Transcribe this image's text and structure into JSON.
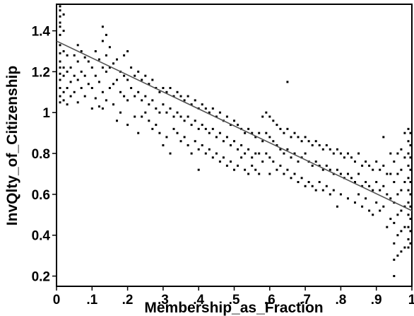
{
  "chart_data": {
    "type": "scatter",
    "xlabel": "Membership_as_Fraction",
    "ylabel": "InvQlty_of_Citizenship",
    "xlim": [
      0,
      1
    ],
    "ylim": [
      0.15,
      1.53
    ],
    "x_ticks": [
      0,
      0.1,
      0.2,
      0.3,
      0.4,
      0.5,
      0.6,
      0.7,
      0.8,
      0.9,
      1
    ],
    "x_tick_labels": [
      "0",
      ".1",
      ".2",
      ".3",
      ".4",
      ".5",
      ".6",
      ".7",
      ".8",
      ".9",
      "1"
    ],
    "y_ticks": [
      0.2,
      0.4,
      0.6,
      0.8,
      1.0,
      1.2,
      1.4
    ],
    "y_tick_labels": [
      "0.2",
      "0.4",
      "0.6",
      "0.8",
      "1",
      "1.2",
      "1.4"
    ],
    "grid": false,
    "legend": "none",
    "point_color": "#000000",
    "line_color": "#555555",
    "fit_line": {
      "x": [
        0,
        1
      ],
      "y": [
        1.35,
        0.52
      ]
    },
    "points": [
      [
        0.01,
        1.52
      ],
      [
        0.01,
        1.5
      ],
      [
        0.01,
        1.47
      ],
      [
        0.01,
        1.44
      ],
      [
        0.01,
        1.42
      ],
      [
        0.01,
        1.38
      ],
      [
        0.01,
        1.33
      ],
      [
        0.01,
        1.29
      ],
      [
        0.01,
        1.25
      ],
      [
        0.01,
        1.22
      ],
      [
        0.01,
        1.19
      ],
      [
        0.01,
        1.16
      ],
      [
        0.01,
        1.12
      ],
      [
        0.01,
        1.08
      ],
      [
        0.01,
        1.05
      ],
      [
        0.02,
        1.48
      ],
      [
        0.02,
        1.4
      ],
      [
        0.02,
        1.3
      ],
      [
        0.02,
        1.22
      ],
      [
        0.02,
        1.18
      ],
      [
        0.02,
        1.1
      ],
      [
        0.02,
        1.06
      ],
      [
        0.03,
        1.28
      ],
      [
        0.03,
        1.2
      ],
      [
        0.03,
        1.12
      ],
      [
        0.03,
        1.04
      ],
      [
        0.04,
        1.22
      ],
      [
        0.04,
        1.15
      ],
      [
        0.04,
        1.08
      ],
      [
        0.05,
        1.28
      ],
      [
        0.05,
        1.18
      ],
      [
        0.05,
        1.1
      ],
      [
        0.06,
        1.33
      ],
      [
        0.06,
        1.25
      ],
      [
        0.06,
        1.16
      ],
      [
        0.06,
        1.05
      ],
      [
        0.07,
        1.3
      ],
      [
        0.07,
        1.2
      ],
      [
        0.07,
        1.12
      ],
      [
        0.08,
        1.27
      ],
      [
        0.08,
        1.18
      ],
      [
        0.08,
        1.08
      ],
      [
        0.09,
        1.25
      ],
      [
        0.09,
        1.14
      ],
      [
        0.1,
        1.22
      ],
      [
        0.1,
        1.12
      ],
      [
        0.1,
        1.02
      ],
      [
        0.11,
        1.3
      ],
      [
        0.11,
        1.18
      ],
      [
        0.11,
        1.07
      ],
      [
        0.12,
        1.26
      ],
      [
        0.12,
        1.15
      ],
      [
        0.12,
        1.03
      ],
      [
        0.13,
        1.42
      ],
      [
        0.13,
        1.35
      ],
      [
        0.13,
        1.22
      ],
      [
        0.13,
        1.1
      ],
      [
        0.13,
        1.02
      ],
      [
        0.14,
        1.38
      ],
      [
        0.14,
        1.28
      ],
      [
        0.14,
        1.2
      ],
      [
        0.14,
        1.06
      ],
      [
        0.15,
        1.32
      ],
      [
        0.15,
        1.22
      ],
      [
        0.15,
        1.12
      ],
      [
        0.16,
        1.24
      ],
      [
        0.16,
        1.14
      ],
      [
        0.16,
        1.04
      ],
      [
        0.17,
        1.26
      ],
      [
        0.17,
        1.16
      ],
      [
        0.17,
        0.96
      ],
      [
        0.18,
        1.2
      ],
      [
        0.18,
        1.1
      ],
      [
        0.18,
        1.0
      ],
      [
        0.19,
        1.28
      ],
      [
        0.19,
        1.18
      ],
      [
        0.19,
        1.08
      ],
      [
        0.2,
        1.3
      ],
      [
        0.2,
        1.16
      ],
      [
        0.2,
        1.06
      ],
      [
        0.2,
        0.94
      ],
      [
        0.21,
        1.22
      ],
      [
        0.21,
        1.12
      ],
      [
        0.22,
        1.18
      ],
      [
        0.22,
        1.08
      ],
      [
        0.22,
        0.98
      ],
      [
        0.23,
        1.2
      ],
      [
        0.23,
        1.1
      ],
      [
        0.23,
        0.9
      ],
      [
        0.24,
        1.16
      ],
      [
        0.24,
        1.06
      ],
      [
        0.24,
        0.98
      ],
      [
        0.25,
        1.18
      ],
      [
        0.25,
        1.08
      ],
      [
        0.25,
        1.0
      ],
      [
        0.26,
        1.14
      ],
      [
        0.26,
        1.04
      ],
      [
        0.26,
        0.96
      ],
      [
        0.27,
        1.16
      ],
      [
        0.27,
        1.06
      ],
      [
        0.27,
        0.92
      ],
      [
        0.28,
        1.12
      ],
      [
        0.28,
        1.02
      ],
      [
        0.28,
        0.94
      ],
      [
        0.29,
        1.1
      ],
      [
        0.29,
        1.0
      ],
      [
        0.29,
        0.9
      ],
      [
        0.3,
        1.12
      ],
      [
        0.3,
        1.04
      ],
      [
        0.3,
        0.84
      ],
      [
        0.31,
        1.1
      ],
      [
        0.31,
        1.0
      ],
      [
        0.31,
        0.88
      ],
      [
        0.32,
        1.12
      ],
      [
        0.32,
        1.02
      ],
      [
        0.32,
        0.8
      ],
      [
        0.33,
        1.08
      ],
      [
        0.33,
        0.98
      ],
      [
        0.33,
        0.92
      ],
      [
        0.34,
        1.1
      ],
      [
        0.34,
        1.0
      ],
      [
        0.34,
        0.9
      ],
      [
        0.35,
        1.08
      ],
      [
        0.35,
        0.98
      ],
      [
        0.35,
        0.86
      ],
      [
        0.36,
        1.06
      ],
      [
        0.36,
        0.96
      ],
      [
        0.36,
        0.88
      ],
      [
        0.37,
        1.08
      ],
      [
        0.37,
        0.98
      ],
      [
        0.37,
        0.84
      ],
      [
        0.38,
        1.04
      ],
      [
        0.38,
        0.94
      ],
      [
        0.38,
        0.8
      ],
      [
        0.39,
        1.06
      ],
      [
        0.39,
        0.96
      ],
      [
        0.39,
        0.86
      ],
      [
        0.4,
        1.02
      ],
      [
        0.4,
        0.92
      ],
      [
        0.4,
        0.82
      ],
      [
        0.4,
        0.72
      ],
      [
        0.41,
        1.04
      ],
      [
        0.41,
        0.94
      ],
      [
        0.41,
        0.84
      ],
      [
        0.42,
        1.02
      ],
      [
        0.42,
        0.92
      ],
      [
        0.42,
        0.8
      ],
      [
        0.43,
        1.0
      ],
      [
        0.43,
        0.9
      ],
      [
        0.43,
        0.82
      ],
      [
        0.44,
        1.02
      ],
      [
        0.44,
        0.92
      ],
      [
        0.44,
        0.78
      ],
      [
        0.45,
        0.98
      ],
      [
        0.45,
        0.88
      ],
      [
        0.45,
        0.8
      ],
      [
        0.46,
        1.0
      ],
      [
        0.46,
        0.9
      ],
      [
        0.46,
        0.76
      ],
      [
        0.47,
        0.96
      ],
      [
        0.47,
        0.86
      ],
      [
        0.47,
        0.78
      ],
      [
        0.48,
        0.98
      ],
      [
        0.48,
        0.88
      ],
      [
        0.48,
        0.74
      ],
      [
        0.49,
        0.94
      ],
      [
        0.49,
        0.84
      ],
      [
        0.49,
        0.76
      ],
      [
        0.5,
        0.96
      ],
      [
        0.5,
        0.86
      ],
      [
        0.5,
        0.72
      ],
      [
        0.51,
        0.94
      ],
      [
        0.51,
        0.82
      ],
      [
        0.51,
        0.74
      ],
      [
        0.52,
        0.92
      ],
      [
        0.52,
        0.84
      ],
      [
        0.52,
        0.78
      ],
      [
        0.53,
        0.9
      ],
      [
        0.53,
        0.8
      ],
      [
        0.53,
        0.72
      ],
      [
        0.54,
        0.92
      ],
      [
        0.54,
        0.82
      ],
      [
        0.54,
        0.7
      ],
      [
        0.55,
        0.9
      ],
      [
        0.55,
        0.78
      ],
      [
        0.55,
        0.74
      ],
      [
        0.56,
        0.88
      ],
      [
        0.56,
        0.8
      ],
      [
        0.56,
        0.72
      ],
      [
        0.57,
        0.9
      ],
      [
        0.57,
        0.8
      ],
      [
        0.57,
        0.7
      ],
      [
        0.58,
        0.98
      ],
      [
        0.58,
        0.86
      ],
      [
        0.58,
        0.76
      ],
      [
        0.59,
        1.0
      ],
      [
        0.59,
        0.9
      ],
      [
        0.59,
        0.8
      ],
      [
        0.6,
        0.98
      ],
      [
        0.6,
        0.88
      ],
      [
        0.6,
        0.78
      ],
      [
        0.6,
        0.7
      ],
      [
        0.61,
        0.96
      ],
      [
        0.61,
        0.86
      ],
      [
        0.61,
        0.76
      ],
      [
        0.62,
        0.94
      ],
      [
        0.62,
        0.84
      ],
      [
        0.62,
        0.72
      ],
      [
        0.63,
        0.92
      ],
      [
        0.63,
        0.82
      ],
      [
        0.63,
        0.74
      ],
      [
        0.64,
        0.9
      ],
      [
        0.64,
        0.8
      ],
      [
        0.64,
        0.7
      ],
      [
        0.65,
        1.15
      ],
      [
        0.65,
        0.92
      ],
      [
        0.65,
        0.82
      ],
      [
        0.65,
        0.72
      ],
      [
        0.66,
        0.88
      ],
      [
        0.66,
        0.78
      ],
      [
        0.66,
        0.68
      ],
      [
        0.67,
        0.9
      ],
      [
        0.67,
        0.8
      ],
      [
        0.67,
        0.7
      ],
      [
        0.68,
        0.88
      ],
      [
        0.68,
        0.76
      ],
      [
        0.68,
        0.66
      ],
      [
        0.69,
        0.86
      ],
      [
        0.69,
        0.78
      ],
      [
        0.69,
        0.68
      ],
      [
        0.7,
        0.88
      ],
      [
        0.7,
        0.8
      ],
      [
        0.7,
        0.64
      ],
      [
        0.71,
        0.86
      ],
      [
        0.71,
        0.76
      ],
      [
        0.71,
        0.66
      ],
      [
        0.72,
        0.84
      ],
      [
        0.72,
        0.74
      ],
      [
        0.72,
        0.64
      ],
      [
        0.73,
        0.86
      ],
      [
        0.73,
        0.76
      ],
      [
        0.73,
        0.62
      ],
      [
        0.74,
        0.84
      ],
      [
        0.74,
        0.74
      ],
      [
        0.74,
        0.66
      ],
      [
        0.75,
        0.82
      ],
      [
        0.75,
        0.72
      ],
      [
        0.75,
        0.62
      ],
      [
        0.76,
        0.84
      ],
      [
        0.76,
        0.74
      ],
      [
        0.76,
        0.64
      ],
      [
        0.77,
        0.82
      ],
      [
        0.77,
        0.72
      ],
      [
        0.77,
        0.6
      ],
      [
        0.78,
        0.8
      ],
      [
        0.78,
        0.7
      ],
      [
        0.78,
        0.62
      ],
      [
        0.79,
        0.82
      ],
      [
        0.79,
        0.72
      ],
      [
        0.79,
        0.54
      ],
      [
        0.8,
        0.8
      ],
      [
        0.8,
        0.7
      ],
      [
        0.8,
        0.6
      ],
      [
        0.81,
        0.78
      ],
      [
        0.81,
        0.68
      ],
      [
        0.82,
        0.8
      ],
      [
        0.82,
        0.7
      ],
      [
        0.82,
        0.58
      ],
      [
        0.83,
        0.78
      ],
      [
        0.83,
        0.68
      ],
      [
        0.84,
        0.76
      ],
      [
        0.84,
        0.66
      ],
      [
        0.84,
        0.56
      ],
      [
        0.85,
        0.8
      ],
      [
        0.85,
        0.7
      ],
      [
        0.85,
        0.6
      ],
      [
        0.86,
        0.74
      ],
      [
        0.86,
        0.64
      ],
      [
        0.86,
        0.54
      ],
      [
        0.87,
        0.76
      ],
      [
        0.87,
        0.66
      ],
      [
        0.87,
        0.58
      ],
      [
        0.88,
        0.74
      ],
      [
        0.88,
        0.64
      ],
      [
        0.88,
        0.52
      ],
      [
        0.89,
        0.72
      ],
      [
        0.89,
        0.62
      ],
      [
        0.89,
        0.5
      ],
      [
        0.9,
        0.76
      ],
      [
        0.9,
        0.66
      ],
      [
        0.9,
        0.56
      ],
      [
        0.91,
        0.72
      ],
      [
        0.91,
        0.62
      ],
      [
        0.91,
        0.52
      ],
      [
        0.92,
        0.88
      ],
      [
        0.92,
        0.74
      ],
      [
        0.92,
        0.64
      ],
      [
        0.92,
        0.54
      ],
      [
        0.93,
        0.7
      ],
      [
        0.93,
        0.6
      ],
      [
        0.93,
        0.44
      ],
      [
        0.94,
        0.8
      ],
      [
        0.94,
        0.7
      ],
      [
        0.94,
        0.58
      ],
      [
        0.94,
        0.48
      ],
      [
        0.95,
        0.76
      ],
      [
        0.95,
        0.66
      ],
      [
        0.95,
        0.56
      ],
      [
        0.95,
        0.46
      ],
      [
        0.95,
        0.36
      ],
      [
        0.95,
        0.28
      ],
      [
        0.95,
        0.2
      ],
      [
        0.96,
        0.8
      ],
      [
        0.96,
        0.7
      ],
      [
        0.96,
        0.6
      ],
      [
        0.96,
        0.5
      ],
      [
        0.96,
        0.4
      ],
      [
        0.96,
        0.3
      ],
      [
        0.97,
        0.82
      ],
      [
        0.97,
        0.72
      ],
      [
        0.97,
        0.62
      ],
      [
        0.97,
        0.52
      ],
      [
        0.97,
        0.42
      ],
      [
        0.97,
        0.32
      ],
      [
        0.98,
        0.9
      ],
      [
        0.98,
        0.78
      ],
      [
        0.98,
        0.66
      ],
      [
        0.98,
        0.54
      ],
      [
        0.98,
        0.44
      ],
      [
        0.98,
        0.34
      ],
      [
        0.99,
        0.92
      ],
      [
        0.99,
        0.86
      ],
      [
        0.99,
        0.8
      ],
      [
        0.99,
        0.74
      ],
      [
        0.99,
        0.68
      ],
      [
        0.99,
        0.62
      ],
      [
        0.99,
        0.56
      ],
      [
        0.99,
        0.5
      ],
      [
        0.99,
        0.44
      ],
      [
        0.99,
        0.38
      ],
      [
        0.99,
        0.34
      ],
      [
        1.0,
        0.9
      ],
      [
        1.0,
        0.84
      ],
      [
        1.0,
        0.78
      ],
      [
        1.0,
        0.72
      ],
      [
        1.0,
        0.66
      ],
      [
        1.0,
        0.6
      ],
      [
        1.0,
        0.54
      ],
      [
        1.0,
        0.48
      ],
      [
        1.0,
        0.42
      ],
      [
        1.0,
        0.36
      ]
    ]
  }
}
